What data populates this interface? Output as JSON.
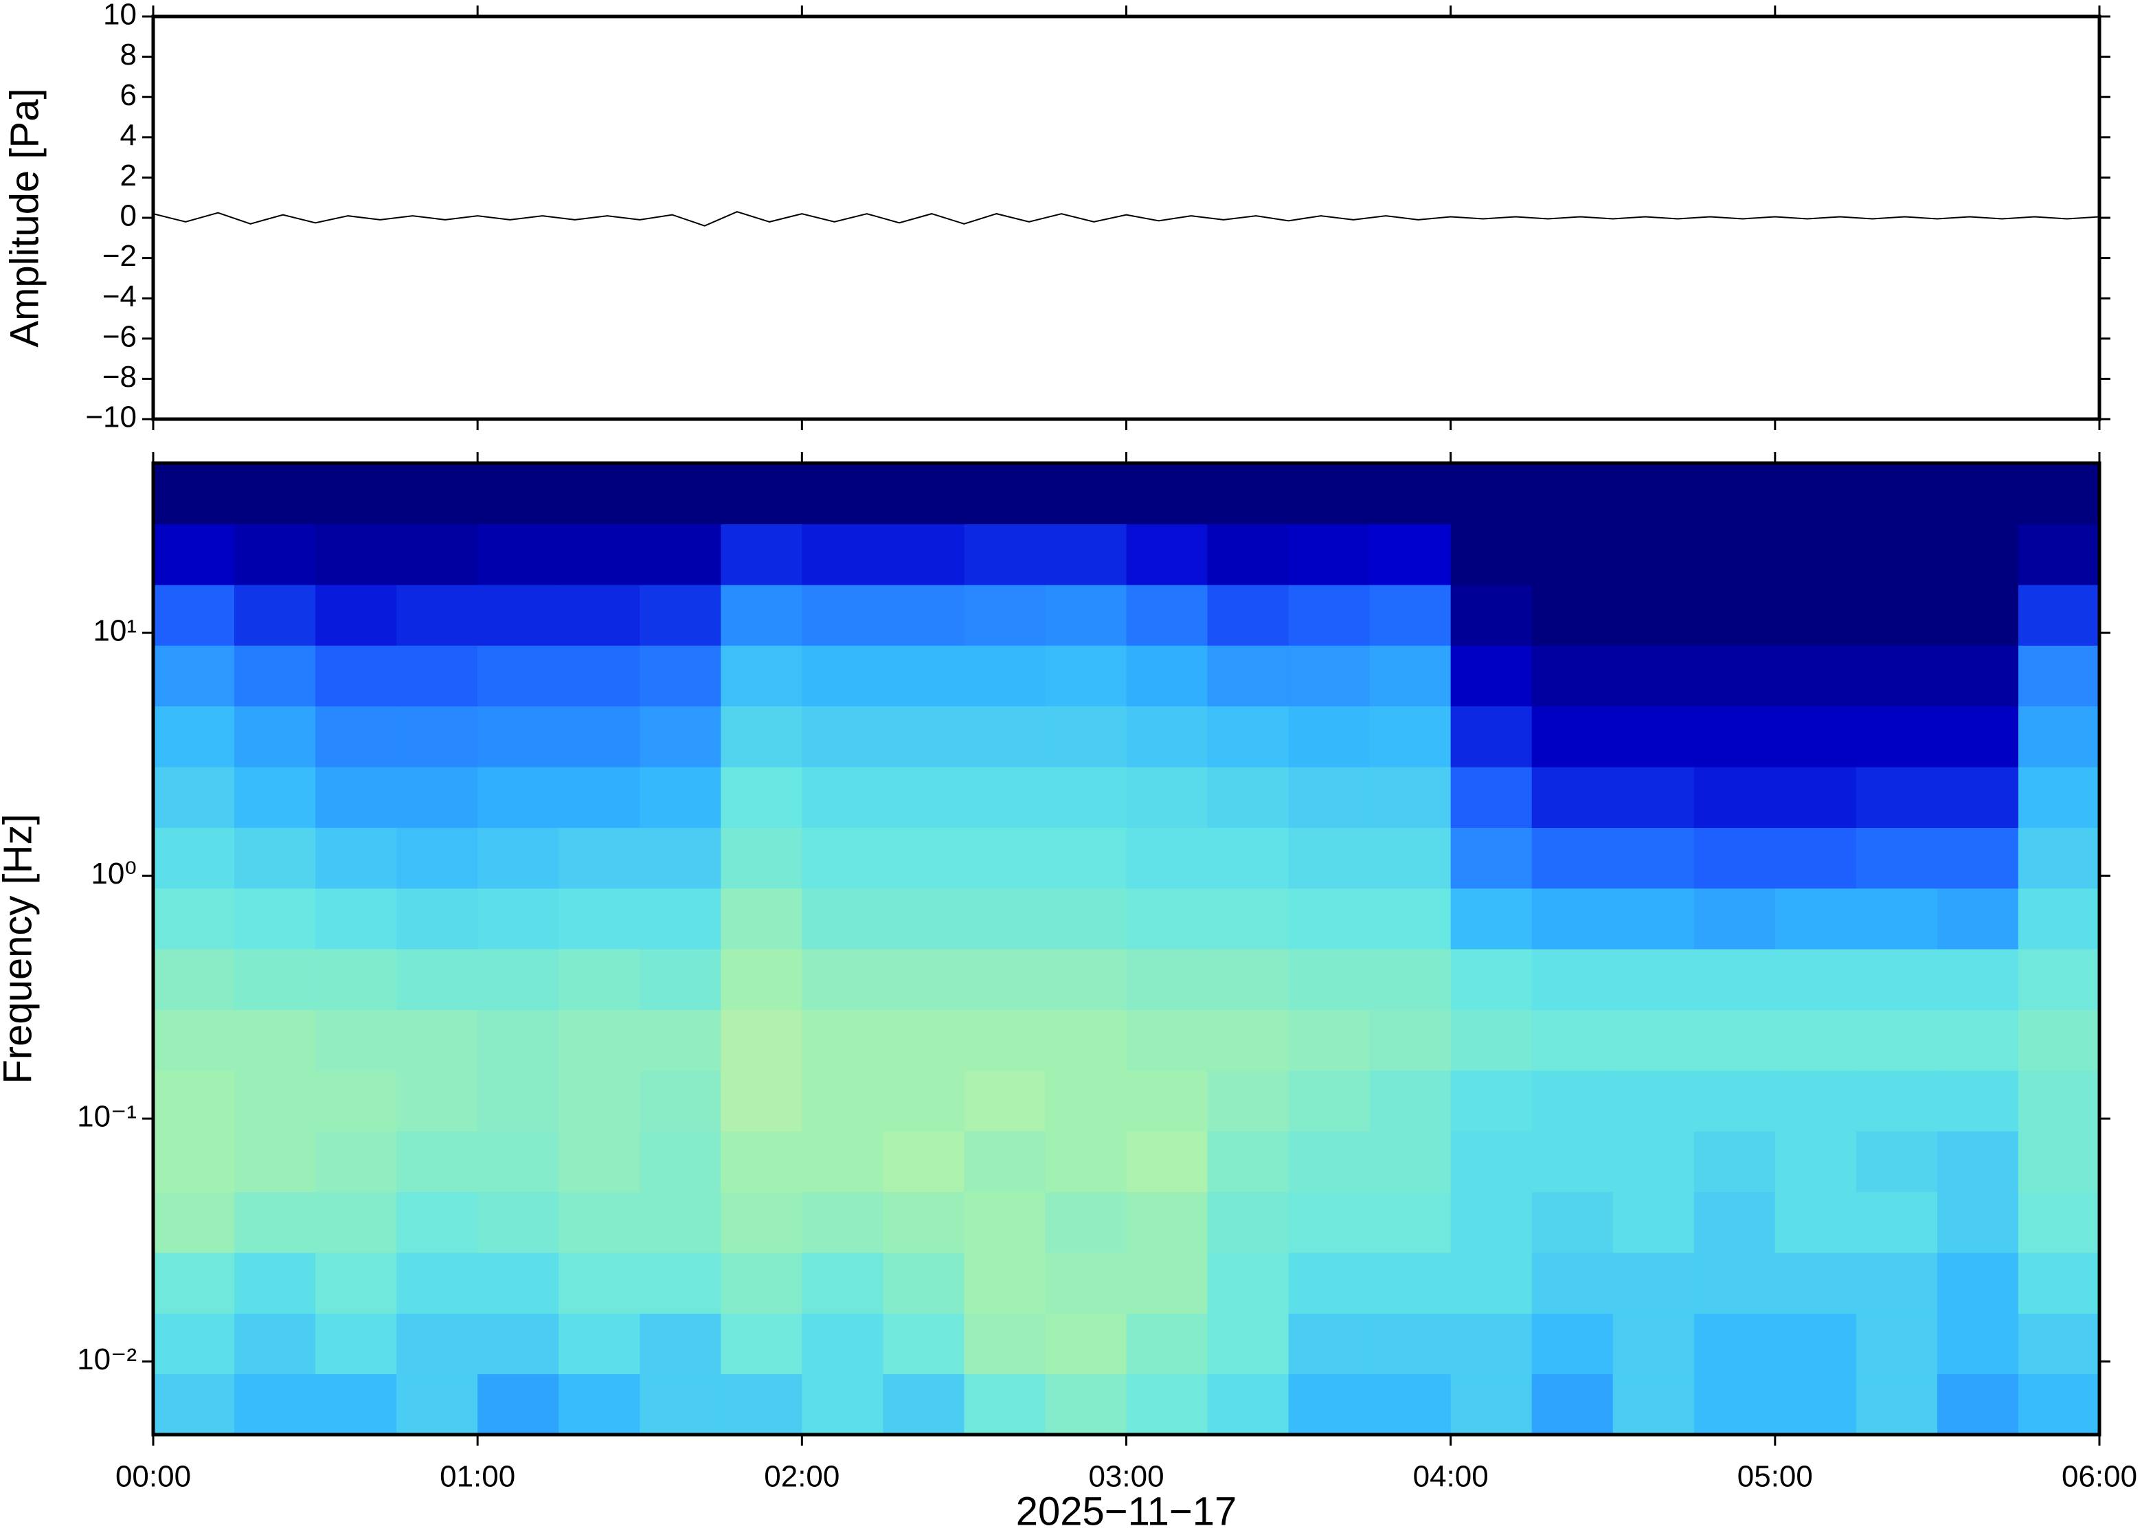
{
  "chart_data": [
    {
      "type": "line",
      "ylabel": "Amplitude [Pa]",
      "color": "#000000",
      "xlim": [
        0,
        6
      ],
      "xticks": [
        0,
        1,
        2,
        3,
        4,
        5,
        6
      ],
      "ylim": [
        -10,
        10
      ],
      "yticks": [
        {
          "value": -10,
          "label": "−10"
        },
        {
          "value": -8,
          "label": "−8"
        },
        {
          "value": -6,
          "label": "−6"
        },
        {
          "value": -4,
          "label": "−4"
        },
        {
          "value": -2,
          "label": "−2"
        },
        0,
        2,
        4,
        6,
        8,
        10
      ],
      "x": [
        0,
        0.1,
        0.2,
        0.3,
        0.4,
        0.5,
        0.6,
        0.7,
        0.8,
        0.9,
        1,
        1.1,
        1.2,
        1.3,
        1.4,
        1.5,
        1.6,
        1.7,
        1.8,
        1.9,
        2,
        2.1,
        2.2,
        2.3,
        2.4,
        2.5,
        2.6,
        2.7,
        2.8,
        2.9,
        3,
        3.1,
        3.2,
        3.3,
        3.4,
        3.5,
        3.6,
        3.7,
        3.8,
        3.9,
        4,
        4.1,
        4.2,
        4.3,
        4.4,
        4.5,
        4.6,
        4.7,
        4.8,
        4.9,
        5,
        5.1,
        5.2,
        5.3,
        5.4,
        5.5,
        5.6,
        5.7,
        5.8,
        5.9,
        6
      ],
      "values": [
        0.2,
        -0.2,
        0.25,
        -0.3,
        0.15,
        -0.25,
        0.1,
        -0.1,
        0.1,
        -0.1,
        0.1,
        -0.1,
        0.1,
        -0.1,
        0.1,
        -0.1,
        0.15,
        -0.4,
        0.3,
        -0.2,
        0.2,
        -0.2,
        0.2,
        -0.25,
        0.2,
        -0.3,
        0.2,
        -0.2,
        0.2,
        -0.2,
        0.15,
        -0.15,
        0.1,
        -0.1,
        0.1,
        -0.15,
        0.1,
        -0.1,
        0.1,
        -0.1,
        0.05,
        -0.05,
        0.05,
        -0.05,
        0.05,
        -0.05,
        0.05,
        -0.05,
        0.05,
        -0.05,
        0.05,
        -0.05,
        0.05,
        -0.05,
        0.05,
        -0.05,
        0.05,
        -0.05,
        0.05,
        -0.05,
        0.05
      ]
    },
    {
      "type": "heatmap",
      "ylabel": "Frequency [Hz]",
      "xlabel": "2025−11−17",
      "ylog": true,
      "xlim": [
        0,
        6
      ],
      "xticks": [
        {
          "value": 0,
          "label": "00:00"
        },
        {
          "value": 1,
          "label": "01:00"
        },
        {
          "value": 2,
          "label": "02:00"
        },
        {
          "value": 3,
          "label": "03:00"
        },
        {
          "value": 4,
          "label": "04:00"
        },
        {
          "value": 5,
          "label": "05:00"
        },
        {
          "value": 6,
          "label": "06:00"
        }
      ],
      "ylim": [
        0.005,
        50
      ],
      "yticks": [
        {
          "value": 0.01,
          "label": "10⁻²"
        },
        {
          "value": 0.1,
          "label": "10⁻¹"
        },
        {
          "value": 1,
          "label": "10⁰"
        },
        {
          "value": 10,
          "label": "10¹"
        }
      ],
      "colormap": [
        "#00007f",
        "#0000d0",
        "#1e64ff",
        "#32b4ff",
        "#64e6e6",
        "#a0f0b4",
        "#e6f596",
        "#fae68c"
      ],
      "zlim": [
        0,
        1
      ],
      "x_edges": [
        0,
        0.25,
        0.5,
        0.75,
        1,
        1.25,
        1.5,
        1.75,
        2,
        2.25,
        2.5,
        2.75,
        3,
        3.25,
        3.5,
        3.75,
        4,
        4.25,
        4.5,
        4.75,
        5,
        5.25,
        5.5,
        5.75,
        6
      ],
      "y_edges": [
        0.005,
        0.0089,
        0.0158,
        0.0281,
        0.05,
        0.0889,
        0.158,
        0.281,
        0.5,
        0.889,
        1.58,
        2.81,
        5,
        8.89,
        15.8,
        28.1,
        50
      ],
      "z": [
        [
          0.5,
          0.45,
          0.45,
          0.5,
          0.4,
          0.45,
          0.5,
          0.5,
          0.55,
          0.5,
          0.6,
          0.65,
          0.6,
          0.55,
          0.45,
          0.45,
          0.5,
          0.4,
          0.5,
          0.45,
          0.45,
          0.5,
          0.4,
          0.45
        ],
        [
          0.55,
          0.5,
          0.55,
          0.5,
          0.5,
          0.55,
          0.5,
          0.6,
          0.55,
          0.6,
          0.7,
          0.72,
          0.65,
          0.6,
          0.5,
          0.5,
          0.5,
          0.45,
          0.5,
          0.45,
          0.45,
          0.5,
          0.45,
          0.5
        ],
        [
          0.6,
          0.55,
          0.6,
          0.55,
          0.55,
          0.6,
          0.6,
          0.65,
          0.6,
          0.65,
          0.72,
          0.7,
          0.7,
          0.6,
          0.55,
          0.55,
          0.55,
          0.5,
          0.5,
          0.5,
          0.5,
          0.5,
          0.45,
          0.55
        ],
        [
          0.7,
          0.65,
          0.65,
          0.6,
          0.62,
          0.65,
          0.65,
          0.7,
          0.68,
          0.7,
          0.72,
          0.68,
          0.7,
          0.62,
          0.6,
          0.6,
          0.55,
          0.52,
          0.55,
          0.5,
          0.55,
          0.55,
          0.5,
          0.6
        ],
        [
          0.72,
          0.7,
          0.68,
          0.65,
          0.65,
          0.68,
          0.65,
          0.72,
          0.72,
          0.74,
          0.7,
          0.72,
          0.74,
          0.65,
          0.62,
          0.62,
          0.55,
          0.55,
          0.55,
          0.52,
          0.55,
          0.52,
          0.5,
          0.62
        ],
        [
          0.72,
          0.7,
          0.7,
          0.68,
          0.66,
          0.68,
          0.66,
          0.75,
          0.72,
          0.72,
          0.74,
          0.72,
          0.72,
          0.68,
          0.65,
          0.62,
          0.56,
          0.55,
          0.55,
          0.55,
          0.55,
          0.55,
          0.55,
          0.62
        ],
        [
          0.7,
          0.7,
          0.68,
          0.68,
          0.66,
          0.68,
          0.68,
          0.75,
          0.72,
          0.72,
          0.72,
          0.72,
          0.7,
          0.7,
          0.68,
          0.66,
          0.62,
          0.6,
          0.6,
          0.6,
          0.6,
          0.6,
          0.6,
          0.64
        ],
        [
          0.66,
          0.64,
          0.64,
          0.62,
          0.62,
          0.64,
          0.62,
          0.72,
          0.68,
          0.68,
          0.68,
          0.68,
          0.66,
          0.66,
          0.64,
          0.64,
          0.58,
          0.56,
          0.56,
          0.56,
          0.56,
          0.56,
          0.56,
          0.6
        ],
        [
          0.6,
          0.58,
          0.56,
          0.54,
          0.55,
          0.56,
          0.56,
          0.68,
          0.62,
          0.62,
          0.62,
          0.62,
          0.6,
          0.6,
          0.58,
          0.58,
          0.45,
          0.42,
          0.42,
          0.4,
          0.42,
          0.42,
          0.4,
          0.55
        ],
        [
          0.55,
          0.52,
          0.48,
          0.46,
          0.48,
          0.5,
          0.5,
          0.62,
          0.58,
          0.58,
          0.58,
          0.58,
          0.56,
          0.56,
          0.54,
          0.54,
          0.35,
          0.3,
          0.3,
          0.28,
          0.28,
          0.3,
          0.3,
          0.5
        ],
        [
          0.5,
          0.45,
          0.4,
          0.4,
          0.42,
          0.42,
          0.44,
          0.58,
          0.55,
          0.55,
          0.55,
          0.55,
          0.54,
          0.52,
          0.5,
          0.5,
          0.28,
          0.2,
          0.2,
          0.18,
          0.18,
          0.2,
          0.2,
          0.45
        ],
        [
          0.45,
          0.4,
          0.35,
          0.35,
          0.36,
          0.36,
          0.38,
          0.52,
          0.5,
          0.5,
          0.5,
          0.5,
          0.48,
          0.46,
          0.44,
          0.45,
          0.2,
          0.12,
          0.12,
          0.12,
          0.12,
          0.12,
          0.12,
          0.4
        ],
        [
          0.38,
          0.33,
          0.28,
          0.28,
          0.3,
          0.3,
          0.32,
          0.46,
          0.44,
          0.44,
          0.44,
          0.45,
          0.42,
          0.38,
          0.38,
          0.4,
          0.12,
          0.06,
          0.06,
          0.06,
          0.06,
          0.06,
          0.06,
          0.35
        ],
        [
          0.28,
          0.22,
          0.18,
          0.2,
          0.2,
          0.2,
          0.22,
          0.36,
          0.34,
          0.34,
          0.35,
          0.36,
          0.32,
          0.26,
          0.28,
          0.3,
          0.04,
          0,
          0,
          0,
          0,
          0,
          0,
          0.22
        ],
        [
          0.12,
          0.08,
          0.06,
          0.06,
          0.08,
          0.08,
          0.08,
          0.2,
          0.18,
          0.18,
          0.2,
          0.2,
          0.16,
          0.1,
          0.12,
          0.14,
          0,
          0,
          0,
          0,
          0,
          0,
          0,
          0.05
        ],
        [
          0,
          0,
          0,
          0,
          0,
          0,
          0,
          0,
          0,
          0,
          0,
          0,
          0,
          0,
          0,
          0,
          0,
          0,
          0,
          0,
          0,
          0,
          0,
          0
        ]
      ]
    }
  ]
}
